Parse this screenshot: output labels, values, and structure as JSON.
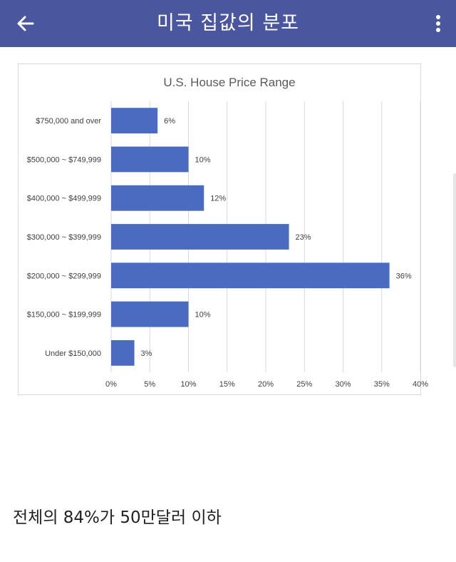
{
  "header": {
    "title": "미국 집값의 분포",
    "back_icon": "arrow-left-icon",
    "menu_icon": "more-vertical-icon",
    "background": "#4a569d"
  },
  "chart_data": {
    "type": "bar",
    "orientation": "horizontal",
    "title": "U.S. House Price Range",
    "categories": [
      "$750,000 and over",
      "$500,000 ~ $749,999",
      "$400,000 ~ $499,999",
      "$300,000 ~ $399,999",
      "$200,000 ~ $299,999",
      "$150,000 ~ $199,999",
      "Under $150,000"
    ],
    "values": [
      6,
      10,
      12,
      23,
      36,
      10,
      3
    ],
    "value_labels": [
      "6%",
      "10%",
      "12%",
      "23%",
      "36%",
      "10%",
      "3%"
    ],
    "xlim": [
      0,
      40
    ],
    "xticks": [
      0,
      5,
      10,
      15,
      20,
      25,
      30,
      35,
      40
    ],
    "xtick_labels": [
      "0%",
      "5%",
      "10%",
      "15%",
      "20%",
      "25%",
      "30%",
      "35%",
      "40%"
    ],
    "xlabel": "",
    "ylabel": "",
    "grid": true,
    "bar_color": "#4a6bbf"
  },
  "caption": "전체의 84%가 50만달러 이하"
}
